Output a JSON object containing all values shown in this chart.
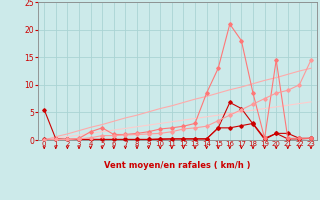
{
  "x": [
    0,
    1,
    2,
    3,
    4,
    5,
    6,
    7,
    8,
    9,
    10,
    11,
    12,
    13,
    14,
    15,
    16,
    17,
    18,
    19,
    20,
    21,
    22,
    23
  ],
  "series": [
    {
      "name": "line1_dark_red",
      "color": "#cc0000",
      "linewidth": 0.8,
      "marker": "D",
      "markersize": 1.8,
      "y": [
        5.5,
        0.2,
        0.1,
        0.1,
        0.1,
        0.1,
        0.1,
        0.1,
        0.1,
        0.1,
        0.1,
        0.2,
        0.2,
        0.2,
        0.2,
        2.2,
        6.8,
        5.7,
        2.9,
        0.1,
        1.2,
        0.2,
        0.2,
        0.3
      ]
    },
    {
      "name": "line2_dark_red",
      "color": "#cc0000",
      "linewidth": 0.8,
      "marker": "D",
      "markersize": 1.8,
      "y": [
        0.1,
        0.1,
        0.1,
        0.1,
        0.1,
        0.1,
        0.1,
        0.1,
        0.1,
        0.1,
        0.2,
        0.2,
        0.2,
        0.2,
        0.2,
        2.2,
        2.2,
        2.6,
        3.0,
        0.3,
        1.2,
        1.2,
        0.3,
        0.3
      ]
    },
    {
      "name": "line3_med_pink",
      "color": "#ff7777",
      "linewidth": 0.8,
      "marker": "D",
      "markersize": 1.8,
      "y": [
        0.0,
        0.1,
        0.1,
        0.3,
        1.5,
        2.2,
        1.0,
        1.0,
        1.2,
        1.5,
        2.0,
        2.2,
        2.5,
        3.0,
        8.5,
        13.0,
        21.0,
        18.0,
        8.5,
        0.3,
        14.5,
        0.3,
        0.3,
        0.3
      ]
    },
    {
      "name": "line4_med_pink",
      "color": "#ff9999",
      "linewidth": 0.8,
      "marker": "D",
      "markersize": 1.8,
      "y": [
        0.0,
        0.1,
        0.1,
        0.2,
        0.4,
        0.8,
        0.8,
        0.9,
        1.0,
        1.1,
        1.2,
        1.5,
        2.0,
        2.2,
        2.5,
        3.5,
        4.5,
        5.5,
        6.5,
        7.5,
        8.5,
        9.0,
        10.0,
        14.5
      ]
    },
    {
      "name": "line5_linear_upper",
      "color": "#ffaaaa",
      "linewidth": 0.8,
      "marker": null,
      "y": [
        0.0,
        0.6,
        1.1,
        1.7,
        2.3,
        2.8,
        3.4,
        4.0,
        4.5,
        5.1,
        5.7,
        6.2,
        6.8,
        7.4,
        7.9,
        8.5,
        9.1,
        9.6,
        10.2,
        10.8,
        11.3,
        11.9,
        12.5,
        13.0
      ]
    },
    {
      "name": "line6_linear_lower",
      "color": "#ffcccc",
      "linewidth": 0.8,
      "marker": null,
      "y": [
        0.0,
        0.3,
        0.6,
        0.9,
        1.2,
        1.5,
        1.8,
        2.1,
        2.4,
        2.7,
        3.0,
        3.3,
        3.6,
        3.9,
        4.2,
        4.5,
        4.8,
        5.1,
        5.4,
        5.7,
        6.0,
        6.3,
        6.6,
        6.9
      ]
    }
  ],
  "xlabel": "Vent moyen/en rafales ( km/h )",
  "xlim": [
    -0.5,
    23.5
  ],
  "ylim": [
    0,
    25
  ],
  "yticks": [
    0,
    5,
    10,
    15,
    20,
    25
  ],
  "xticks": [
    0,
    1,
    2,
    3,
    4,
    5,
    6,
    7,
    8,
    9,
    10,
    11,
    12,
    13,
    14,
    15,
    16,
    17,
    18,
    19,
    20,
    21,
    22,
    23
  ],
  "bg_color": "#cceaea",
  "grid_color": "#aad4d4",
  "arrow_color": "#cc0000",
  "xlabel_color": "#cc0000",
  "tick_color": "#cc0000",
  "spine_color": "#888888",
  "xlabel_fontsize": 6.0,
  "tick_fontsize_x": 5.0,
  "tick_fontsize_y": 5.5
}
